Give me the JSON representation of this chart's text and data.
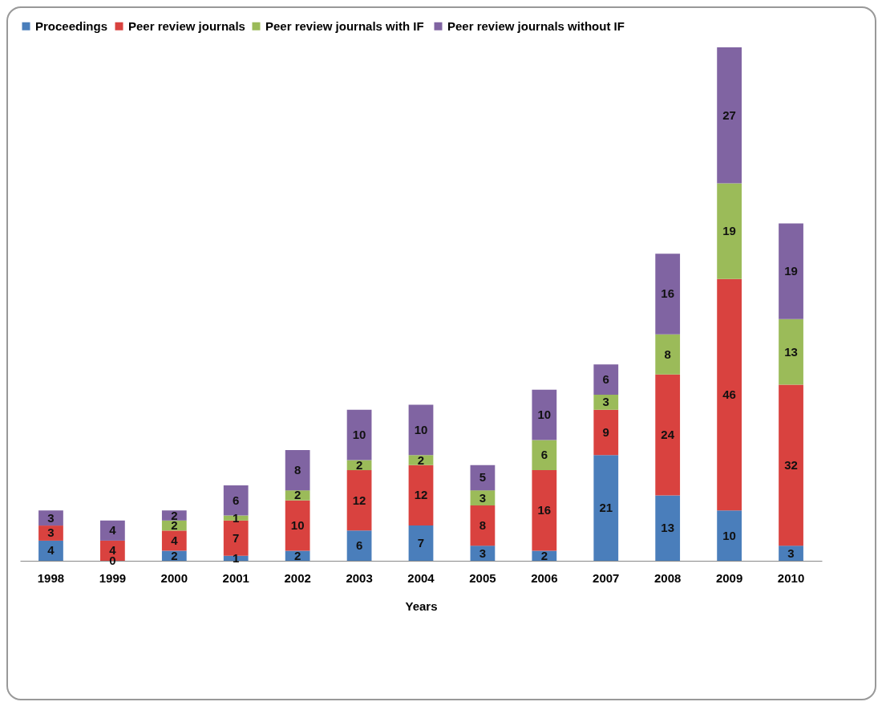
{
  "chart_data": {
    "type": "bar",
    "stacked": true,
    "xlabel": "Years",
    "legend": "top",
    "tick_labels": "x",
    "grid": false,
    "categories": [
      "1998",
      "1999",
      "2000",
      "2001",
      "2002",
      "2003",
      "2004",
      "2005",
      "2006",
      "2007",
      "2008",
      "2009",
      "2010"
    ],
    "series": [
      {
        "name": "Proceedings",
        "color": "#4a7ebb",
        "values": [
          4,
          0,
          2,
          1,
          2,
          6,
          7,
          3,
          2,
          21,
          13,
          10,
          3
        ],
        "value_labels": [
          "4",
          "0",
          "2",
          "1",
          "2",
          "6",
          "7",
          "3",
          "2",
          "21",
          "13",
          "10",
          "3"
        ]
      },
      {
        "name": "Peer review journals",
        "color": "#d9423f",
        "values": [
          3,
          4,
          4,
          7,
          10,
          12,
          12,
          8,
          16,
          9,
          24,
          46,
          32
        ],
        "value_labels": [
          "3",
          "4",
          "4",
          "7",
          "10",
          "12",
          "12",
          "8",
          "16",
          "9",
          "24",
          "46",
          "32"
        ]
      },
      {
        "name": "Peer review journals with  IF",
        "color": "#9bbb59",
        "values": [
          0,
          0,
          2,
          1,
          2,
          2,
          2,
          3,
          6,
          3,
          8,
          19,
          13
        ],
        "value_labels": [
          null,
          null,
          "2",
          "1",
          "2",
          "2",
          "2",
          "3",
          "6",
          "3",
          "8",
          "19",
          "13"
        ]
      },
      {
        "name": "Peer review journals without IF",
        "color": "#8064a2",
        "values": [
          3,
          4,
          2,
          6,
          8,
          10,
          10,
          5,
          10,
          6,
          16,
          27,
          19
        ],
        "value_labels": [
          "3",
          "4",
          "2",
          "6",
          "8",
          "10",
          "10",
          "5",
          "10",
          "6",
          "16",
          "27",
          "19"
        ]
      }
    ]
  }
}
